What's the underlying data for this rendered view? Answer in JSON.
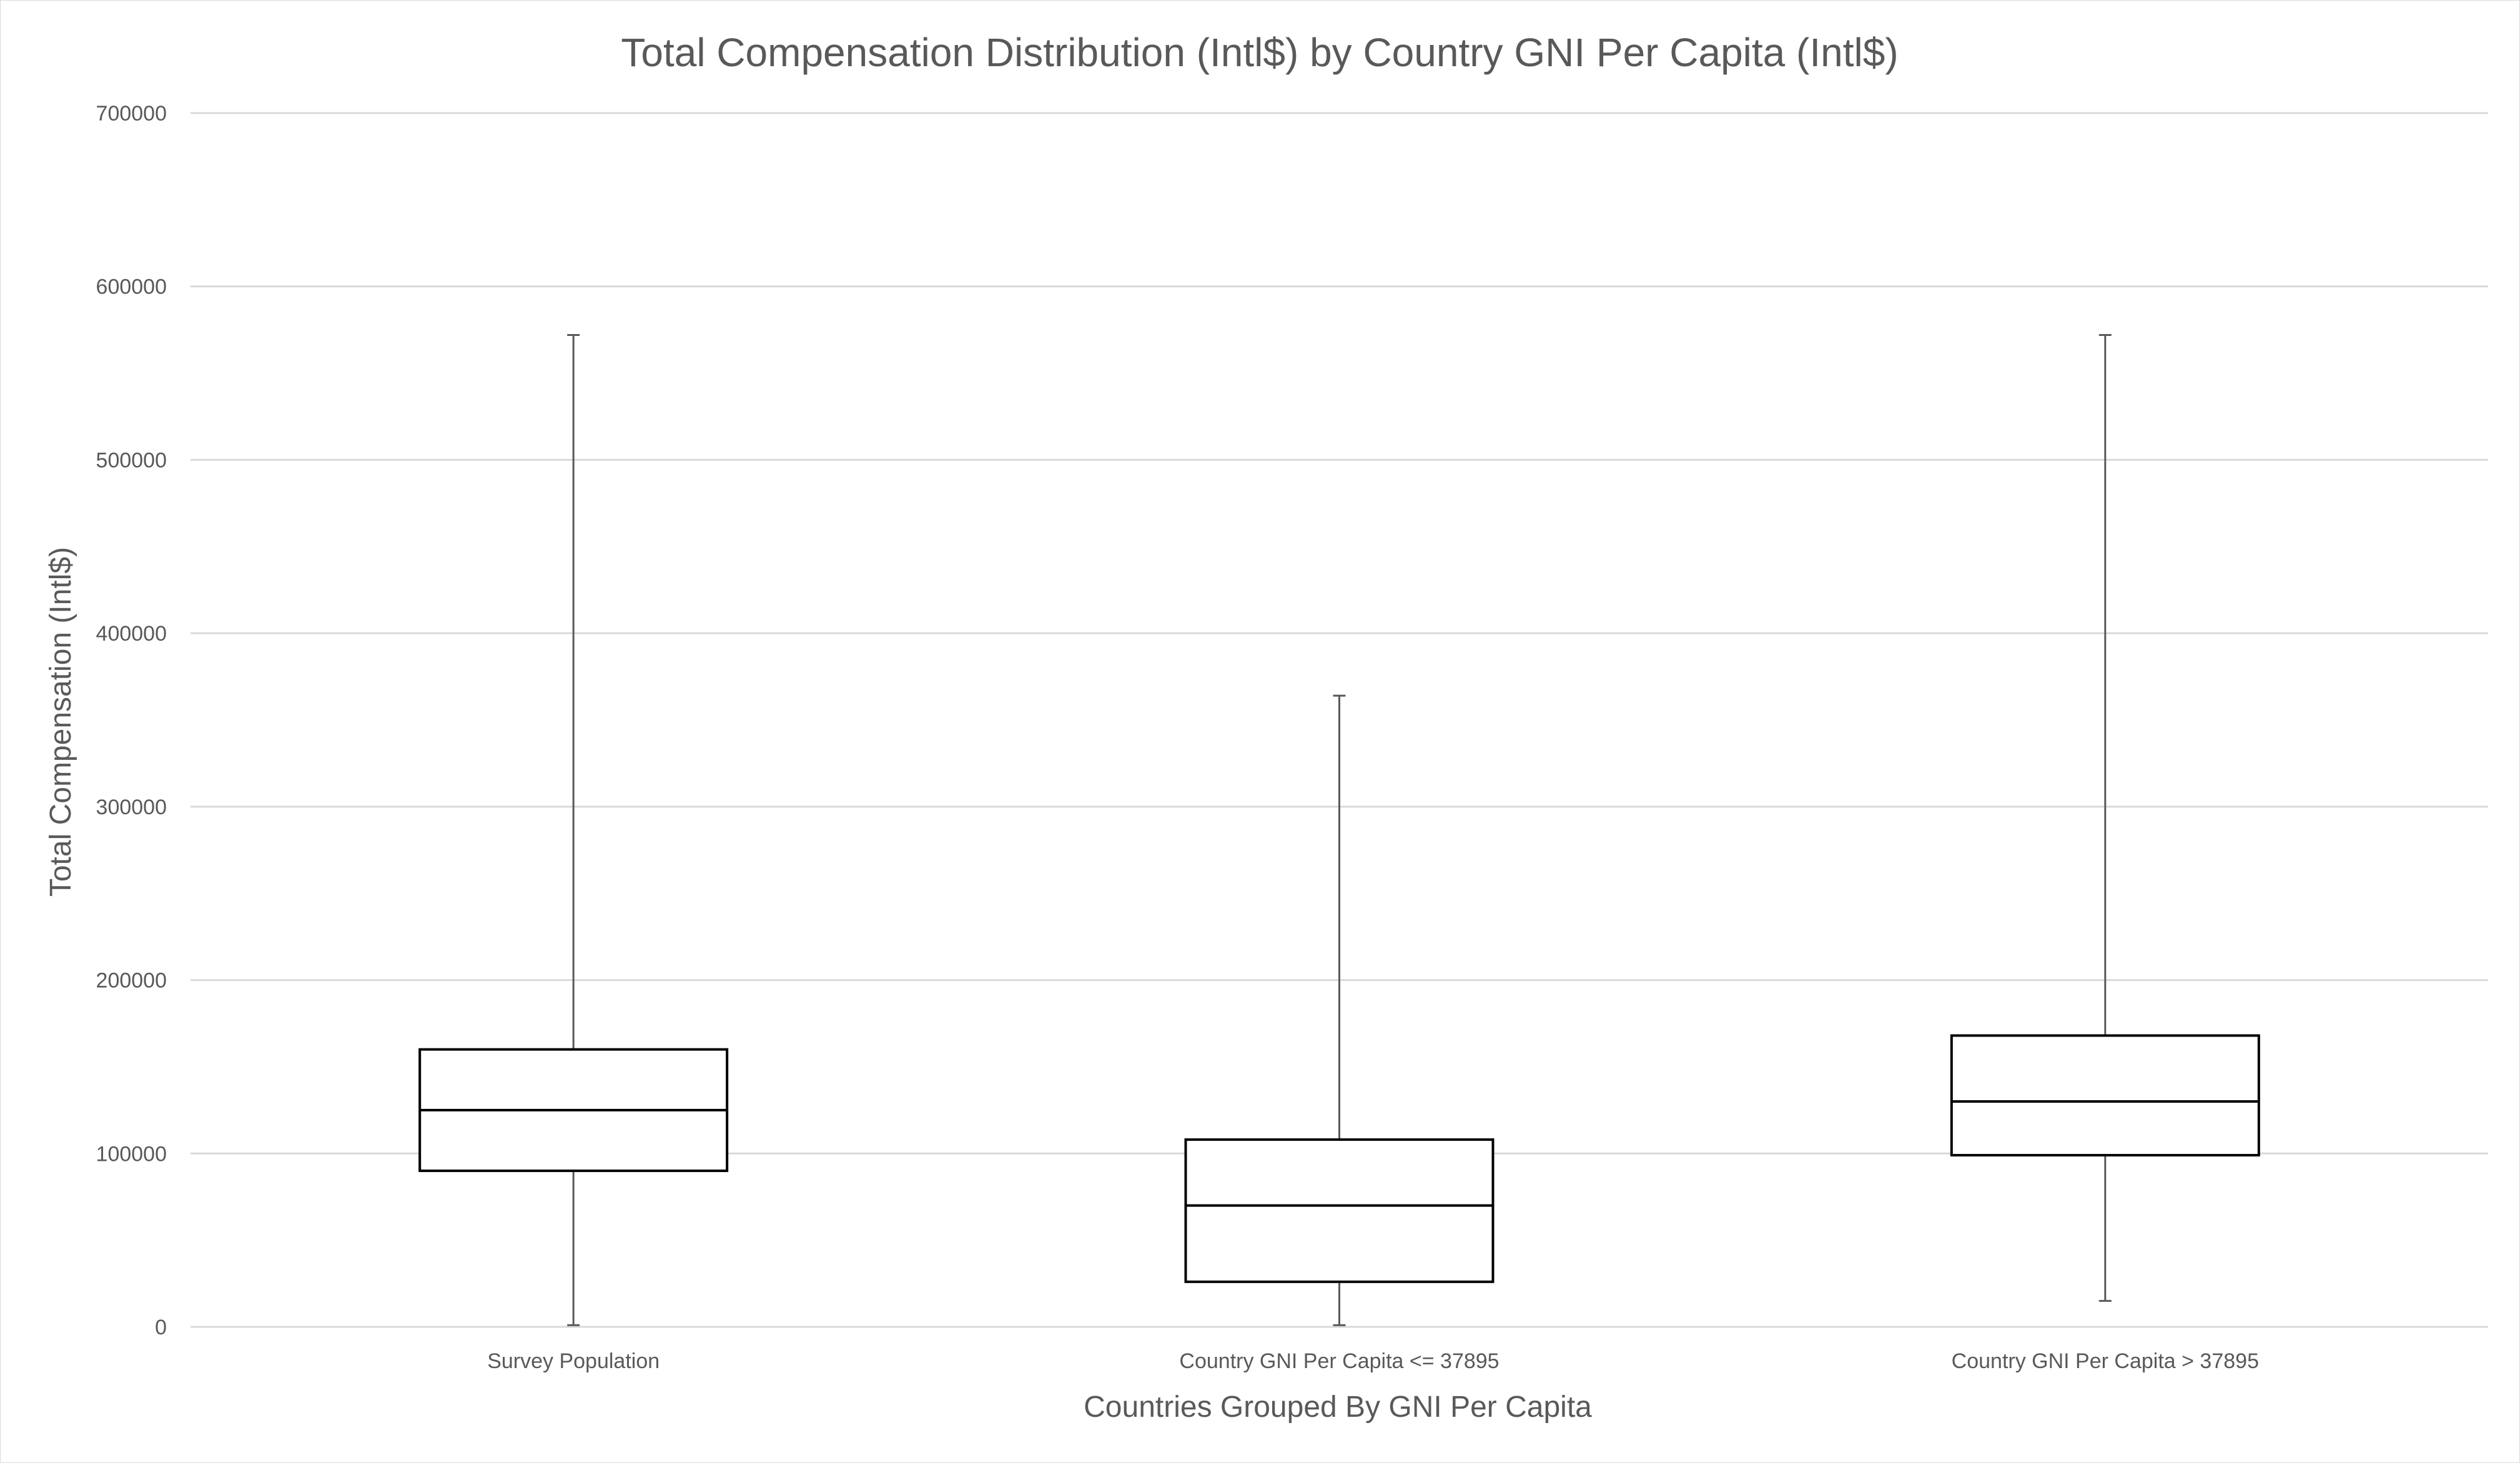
{
  "chart_data": {
    "type": "box",
    "title": "Total Compensation Distribution (Intl$) by Country GNI Per Capita (Intl$)",
    "xlabel": "Countries Grouped By GNI Per Capita",
    "ylabel": "Total Compensation (Intl$)",
    "ylim": [
      0,
      700000
    ],
    "yticks": [
      0,
      100000,
      200000,
      300000,
      400000,
      500000,
      600000,
      700000
    ],
    "ytick_labels": [
      "0",
      "100000",
      "200000",
      "300000",
      "400000",
      "500000",
      "600000",
      "700000"
    ],
    "grid": true,
    "legend": "none",
    "categories": [
      "Survey Population",
      "Country GNI Per Capita <= 37895",
      "Country GNI Per Capita > 37895"
    ],
    "boxes": [
      {
        "min": 1000,
        "q1": 90000,
        "median": 125000,
        "q3": 160000,
        "max": 572000
      },
      {
        "min": 1000,
        "q1": 26000,
        "median": 70000,
        "q3": 108000,
        "max": 364000
      },
      {
        "min": 15000,
        "q1": 99000,
        "median": 130000,
        "q3": 168000,
        "max": 572000
      }
    ]
  }
}
